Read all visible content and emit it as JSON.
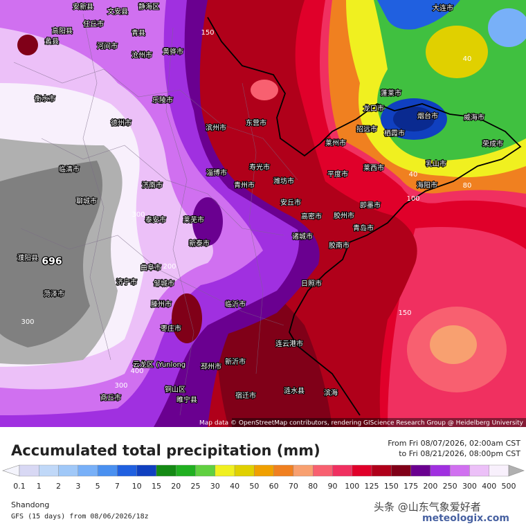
{
  "map": {
    "attribution": "Map data © OpenStreetMap contributors, rendering GIScience Research Group @ Heidelberg University",
    "places": [
      "大连市",
      "安新县",
      "文安县",
      "静海区",
      "任丘市",
      "高阳县",
      "蠡县",
      "青县",
      "河间市",
      "沧州市",
      "黄骅市",
      "衡水市",
      "德州市",
      "乐陵市",
      "滨州市",
      "东营市",
      "寿光市",
      "青州市",
      "淄博市",
      "潍坊市",
      "济南市",
      "聊城市",
      "临清市",
      "泰安市",
      "莱芜市",
      "新泰市",
      "安丘市",
      "高密市",
      "胶州市",
      "诸城市",
      "青岛市",
      "即墨市",
      "胶南市",
      "平度市",
      "莱州市",
      "莱西市",
      "招远市",
      "龙口市",
      "蓬莱市",
      "栖霞市",
      "烟台市",
      "威海市",
      "荣成市",
      "乳山市",
      "海阳市",
      "日照市",
      "临沂市",
      "曲阜市",
      "邹城市",
      "济宁市",
      "滕州市",
      "枣庄市",
      "菏泽市",
      "濮阳县",
      "连云港市",
      "新沂市",
      "邳州市",
      "宿迁市",
      "涟水县",
      "滨海",
      "云龙区 (Yunlong",
      "铜山区",
      "睢宁县",
      "商丘市"
    ],
    "contour_labels": [
      "696",
      "300",
      "300",
      "400",
      "300",
      "200",
      "150",
      "150",
      "100",
      "80",
      "40",
      "40"
    ]
  },
  "legend": {
    "title": "Accumulated total precipitation (mm)",
    "period": [
      "From Fri 08/07/2026, 02:00am CST",
      "to Fri 08/21/2026, 08:00pm CST"
    ],
    "levels": [
      "0.1",
      "1",
      "2",
      "3",
      "5",
      "7",
      "10",
      "15",
      "20",
      "25",
      "30",
      "40",
      "50",
      "60",
      "70",
      "80",
      "90",
      "100",
      "125",
      "150",
      "175",
      "200",
      "250",
      "300",
      "400",
      "500"
    ],
    "colors": [
      "#f4f4fc",
      "#d8d8f4",
      "#c0d8f8",
      "#a0c8f8",
      "#78b0f8",
      "#4a90f0",
      "#2060e0",
      "#1040c0",
      "#148a14",
      "#20b020",
      "#60d040",
      "#f0f020",
      "#e0d000",
      "#f0a000",
      "#f08020",
      "#f8a070",
      "#f86070",
      "#f03060",
      "#e0002a",
      "#b0001a",
      "#800018",
      "#6a0090",
      "#a030e0",
      "#d070f0",
      "#ecc0f8",
      "#f8f0fc",
      "#b0b0b0"
    ]
  },
  "footer": {
    "region": "Shandong",
    "model": "GFS (15 days) from  08/06/2026/18z",
    "watermark": "头条 @山东气象爱好者",
    "logo": "meteologix.com"
  }
}
